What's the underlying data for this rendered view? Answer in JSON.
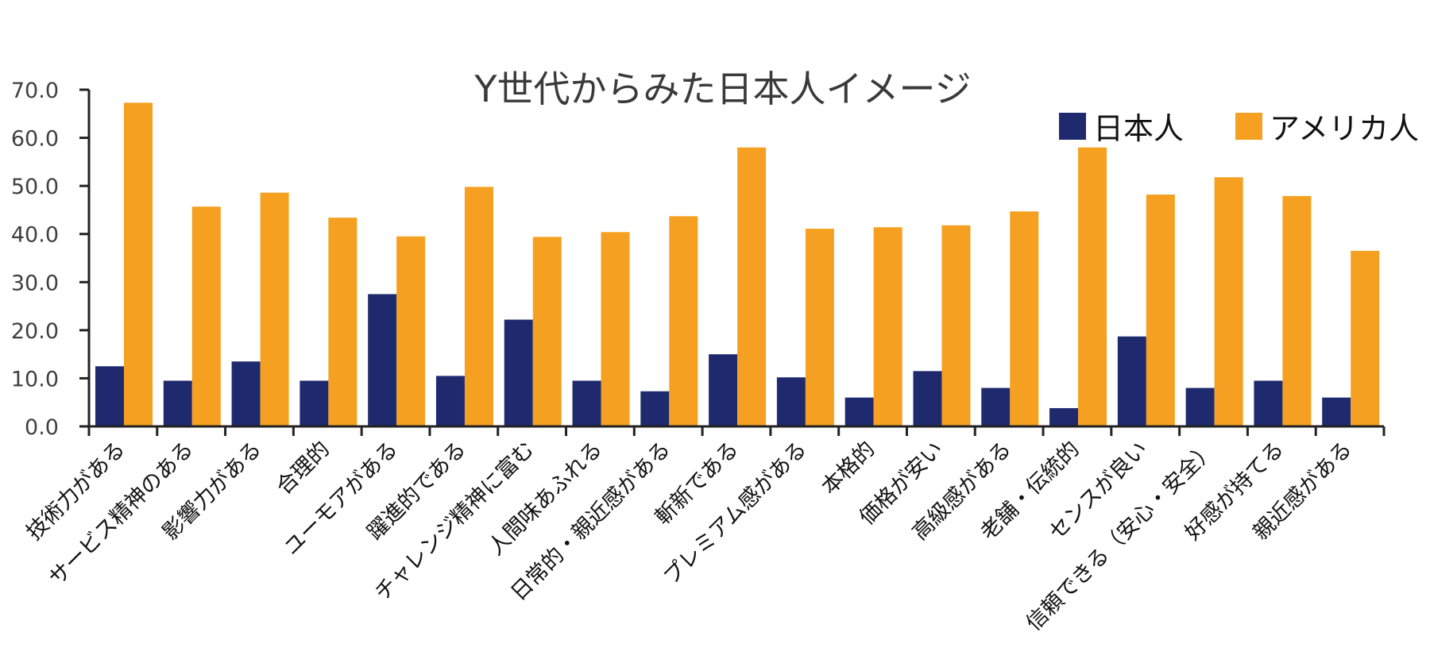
{
  "chart_data": {
    "type": "bar",
    "title": "Y世代からみた日本人イメージ",
    "xlabel": "",
    "ylabel": "",
    "ylim": [
      0,
      70
    ],
    "yticks": [
      "0.0",
      "10.0",
      "20.0",
      "30.0",
      "40.0",
      "50.0",
      "60.0",
      "70.0"
    ],
    "ytick_values": [
      0,
      10,
      20,
      30,
      40,
      50,
      60,
      70
    ],
    "grid": false,
    "legend_position": "top-right",
    "categories": [
      "技術力がある",
      "サービス精神のある",
      "影響力がある",
      "合理的",
      "ユーモアがある",
      "躍進的である",
      "チャレンジ精神に富む",
      "人間味あふれる",
      "日常的・親近感がある",
      "斬新である",
      "プレミアム感がある",
      "本格的",
      "価格が安い",
      "高級感がある",
      "老舗・伝統的",
      "センスが良い",
      "信頼できる（安心・安全）",
      "好感が持てる",
      "親近感がある"
    ],
    "series": [
      {
        "name": "日本人",
        "color": "#1f2a6e",
        "values": [
          12.5,
          9.5,
          13.5,
          9.5,
          27.5,
          10.5,
          22.2,
          9.5,
          7.3,
          15.0,
          10.2,
          6.0,
          11.5,
          8.0,
          3.8,
          18.7,
          8.0,
          9.5,
          6.0
        ]
      },
      {
        "name": "アメリカ人",
        "color": "#f5a020",
        "values": [
          67.3,
          45.7,
          48.6,
          43.4,
          39.5,
          49.8,
          39.4,
          40.4,
          43.7,
          58.0,
          41.1,
          41.4,
          41.8,
          44.7,
          58.0,
          48.2,
          51.8,
          47.9,
          36.5
        ]
      }
    ]
  }
}
